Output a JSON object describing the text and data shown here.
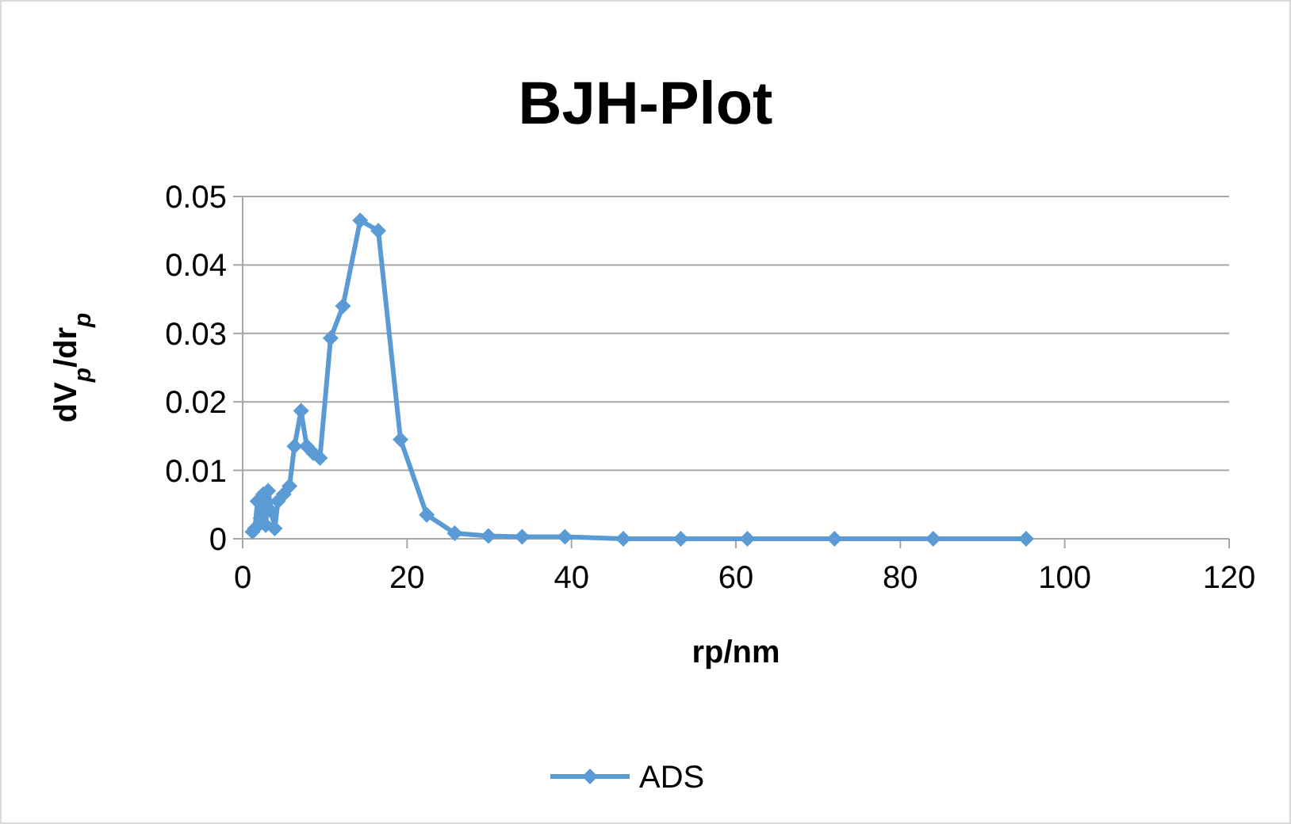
{
  "chart_data": {
    "type": "line",
    "title": "BJH-Plot",
    "xlabel": "rp/nm",
    "ylabel": "dV$_{p}$/dr$_{p}$",
    "x": [
      1.2,
      1.5,
      1.8,
      2.2,
      2.5,
      2.8,
      3.1,
      3.5,
      3.9,
      4.3,
      5.0,
      5.7,
      6.3,
      7.1,
      7.8,
      8.6,
      9.4,
      10.7,
      12.2,
      14.3,
      16.5,
      19.2,
      22.4,
      25.8,
      29.9,
      34,
      39.2,
      46.3,
      53.3,
      61.4,
      72,
      84,
      95.3
    ],
    "series": [
      {
        "name": "ADS",
        "color": "#5b9bd5",
        "values": [
          0.001,
          0.0015,
          0.0055,
          0.003,
          0.0065,
          0.002,
          0.007,
          0.004,
          0.0015,
          0.0055,
          0.0065,
          0.0077,
          0.0135,
          0.0187,
          0.0135,
          0.0125,
          0.0118,
          0.0293,
          0.034,
          0.0465,
          0.045,
          0.0145,
          0.0035,
          0.0008,
          0.0004,
          0.0003,
          0.0003,
          0,
          0,
          0,
          0,
          0,
          0
        ]
      }
    ],
    "xlim": [
      0,
      120
    ],
    "xticks": [
      0,
      20,
      40,
      60,
      80,
      100,
      120
    ],
    "ylim": [
      0,
      0.05
    ],
    "yticks": [
      0,
      0.01,
      0.02,
      0.03,
      0.04,
      0.05
    ],
    "grid": "y",
    "legend": "bottom",
    "marker": "diamond",
    "line_style": "solid"
  }
}
